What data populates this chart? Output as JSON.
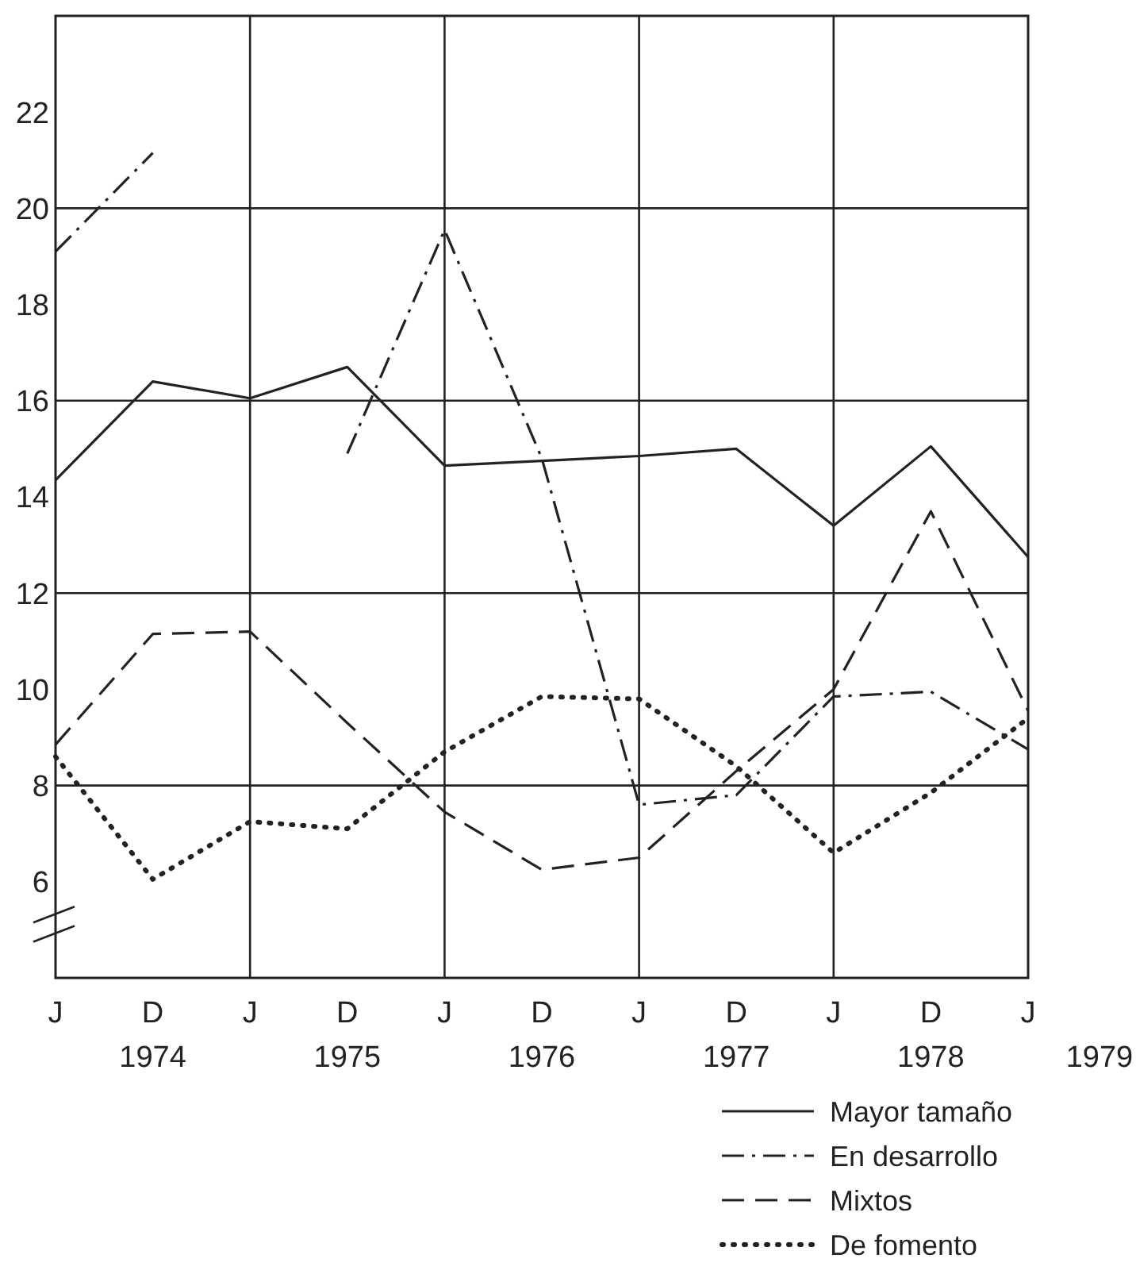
{
  "chart_data": {
    "type": "line",
    "categories": [
      "J",
      "D",
      "J",
      "D",
      "J",
      "D",
      "J",
      "D",
      "J",
      "D",
      "J"
    ],
    "ylim": [
      4,
      24
    ],
    "yticks": [
      6,
      8,
      10,
      12,
      14,
      16,
      18,
      20,
      22
    ],
    "grid": true,
    "legend": "bottom right",
    "annotations": [
      "1974",
      "1975",
      "1976",
      "1977",
      "1978",
      "1979"
    ],
    "series": [
      {
        "name": "Mayor tamaño",
        "color": "#222222",
        "line_style": "solid",
        "values": [
          14.35,
          16.4,
          16.05,
          16.7,
          14.65,
          14.75,
          14.85,
          15.0,
          13.4,
          15.05,
          12.75
        ]
      },
      {
        "name": "En desarrollo",
        "color": "#222222",
        "line_style": "dashdot",
        "values": [
          19.1,
          21.15,
          null,
          14.9,
          19.55,
          14.8,
          7.6,
          7.8,
          9.85,
          9.95,
          8.75
        ]
      },
      {
        "name": "Mixtos",
        "color": "#222222",
        "line_style": "dashed",
        "values": [
          8.85,
          11.15,
          11.2,
          9.3,
          7.45,
          6.25,
          6.5,
          8.3,
          10.0,
          13.7,
          9.55
        ]
      },
      {
        "name": "De fomento",
        "color": "#222222",
        "line_style": "dotted",
        "values": [
          8.6,
          6.05,
          7.25,
          7.1,
          8.7,
          9.85,
          9.8,
          8.4,
          6.6,
          7.85,
          9.4
        ]
      }
    ]
  }
}
